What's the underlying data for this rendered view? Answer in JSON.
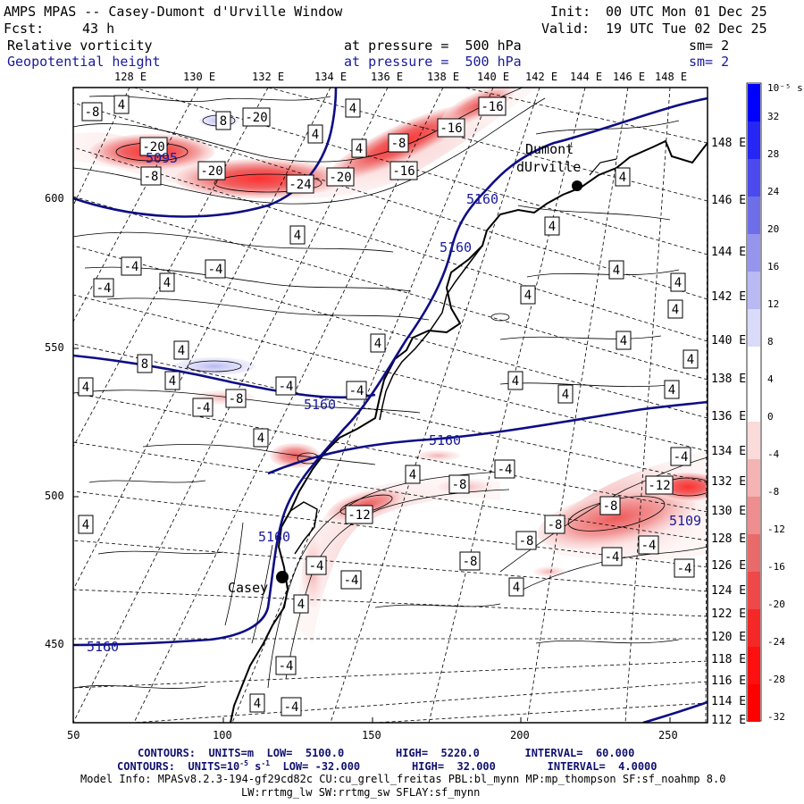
{
  "header": {
    "title": "AMPS MPAS -- Casey-Dumont d'Urville Window",
    "fcst_label": "Fcst:",
    "fcst_value": "43 h",
    "init_label": "Init:",
    "init_value": "00 UTC Mon 01 Dec 25",
    "valid_label": "Valid:",
    "valid_value": "19 UTC Tue 02 Dec 25",
    "field1": {
      "name": "Relative vorticity",
      "level": "at pressure =  500 hPa",
      "sm": "sm= 2"
    },
    "field2": {
      "name": "Geopotential height",
      "level": "at pressure =  500 hPa",
      "sm": "sm= 2"
    }
  },
  "lon_labels": [
    "128 E",
    "130 E",
    "132 E",
    "134 E",
    "136 E",
    "138 E",
    "140 E",
    "142 E",
    "144 E",
    "146 E",
    "148 E"
  ],
  "lat_labels": [
    "148 E",
    "146 E",
    "144 E",
    "142 E",
    "140 E",
    "138 E",
    "136 E",
    "134 E",
    "132 E",
    "130 E",
    "128 E",
    "126 E",
    "124 E",
    "122 E",
    "120 E",
    "118 E",
    "116 E",
    "114 E",
    "112 E"
  ],
  "x_axis": [
    "50",
    "100",
    "150",
    "200",
    "250"
  ],
  "y_axis": [
    "600",
    "550",
    "500",
    "450"
  ],
  "colorbar": {
    "unit_label": "10⁻⁵ s⁻¹",
    "labels": [
      "32",
      "28",
      "24",
      "20",
      "16",
      "12",
      "8",
      "4",
      "0",
      "-4",
      "-8",
      "-12",
      "-16",
      "-20",
      "-24",
      "-28",
      "-32"
    ],
    "colors": [
      "#0000ff",
      "#2626f5",
      "#4a4aee",
      "#6e6ee8",
      "#9595ee",
      "#b9b9f4",
      "#dadafa",
      "#ffffff",
      "#ffffff",
      "#fbdada",
      "#f4b4b4",
      "#ee8e8e",
      "#e86a6a",
      "#ee4848",
      "#f52828",
      "#ff1010",
      "#ff0000"
    ]
  },
  "stations": [
    {
      "name": "Dumont",
      "name2": "dUrville"
    },
    {
      "name": "Casey"
    }
  ],
  "height_labels": [
    "5160",
    "5160",
    "5160",
    "5160",
    "5160",
    "5160",
    "5109",
    "5095"
  ],
  "vort_labels": [
    "-8",
    "4",
    "8",
    "-20",
    "4",
    "-16",
    "4",
    "-16",
    "4",
    "-8",
    "-20",
    "-20",
    "-24",
    "-20",
    "-16",
    "-8",
    "4",
    "4",
    "4",
    "-4",
    "4",
    "4",
    "-4",
    "-4",
    "4",
    "4",
    "4",
    "4",
    "4",
    "8",
    "-8",
    "-4",
    "4",
    "4",
    "4",
    "4",
    "-4",
    "-4",
    "4",
    "4",
    "-4",
    "4",
    "-4",
    "4",
    "4",
    "-12",
    "-8",
    "-12",
    "-8",
    "-8",
    "-8",
    "-4",
    "-4",
    "-4",
    "-8",
    "-4",
    "-4",
    "4",
    "4",
    "-4",
    "-4",
    "4",
    "4"
  ],
  "footer": {
    "line1": "CONTOURS:  UNITS=m  LOW=  5100.0        HIGH=  5220.0       INTERVAL=  60.000",
    "line2_a": "CONTOURS:  UNITS=10",
    "line2_sup": "-5",
    "line2_b": " s",
    "line2_sup2": "-1",
    "line2_c": "  LOW= -32.000        HIGH=  32.000        INTERVAL=  4.0000",
    "line3": "Model Info: MPASv8.2.3-194-gf29cd82c CU:cu_grell_freitas PBL:bl_mynn MP:mp_thompson SF:sf_noahmp 8.0",
    "line4": "LW:rrtmg_lw SW:rrtmg_sw SFLAY:sf_mynn"
  }
}
